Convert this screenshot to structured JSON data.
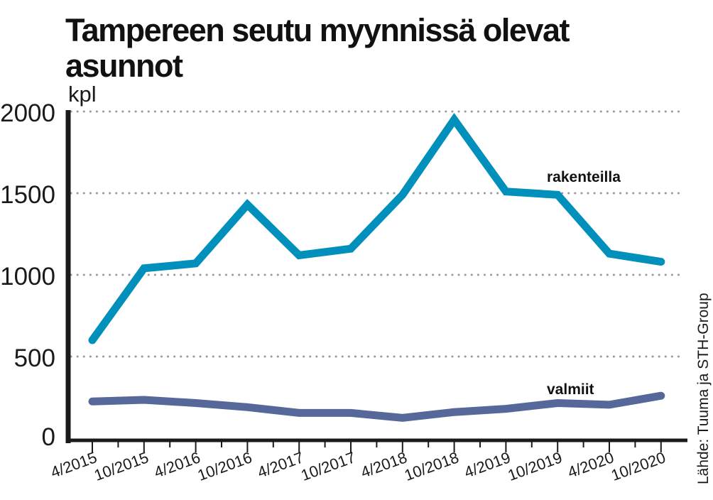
{
  "title_lines": [
    "Tampereen seutu myynnissä olevat",
    "asunnot"
  ],
  "source": "Lähde: Tuuma ja STH-Group",
  "chart_data": {
    "type": "line",
    "title": "Tampereen seutu myynnissä olevat asunnot",
    "ylabel": "kpl",
    "xlabel": "",
    "ylim": [
      0,
      2000
    ],
    "yticks": [
      0,
      500,
      1000,
      1500,
      2000
    ],
    "grid": true,
    "categories": [
      "4/2015",
      "10/2015",
      "4/2016",
      "10/2016",
      "4/2017",
      "10/2017",
      "4/2018",
      "10/2018",
      "4/2019",
      "10/2019",
      "4/2020",
      "10/2020"
    ],
    "series": [
      {
        "name": "rakenteilla",
        "color": "#0090bb",
        "values": [
          600,
          1040,
          1070,
          1430,
          1120,
          1160,
          1490,
          1950,
          1510,
          1490,
          1130,
          1080
        ]
      },
      {
        "name": "valmiit",
        "color": "#56679a",
        "values": [
          225,
          235,
          215,
          190,
          155,
          155,
          125,
          160,
          180,
          215,
          205,
          260
        ]
      }
    ]
  }
}
